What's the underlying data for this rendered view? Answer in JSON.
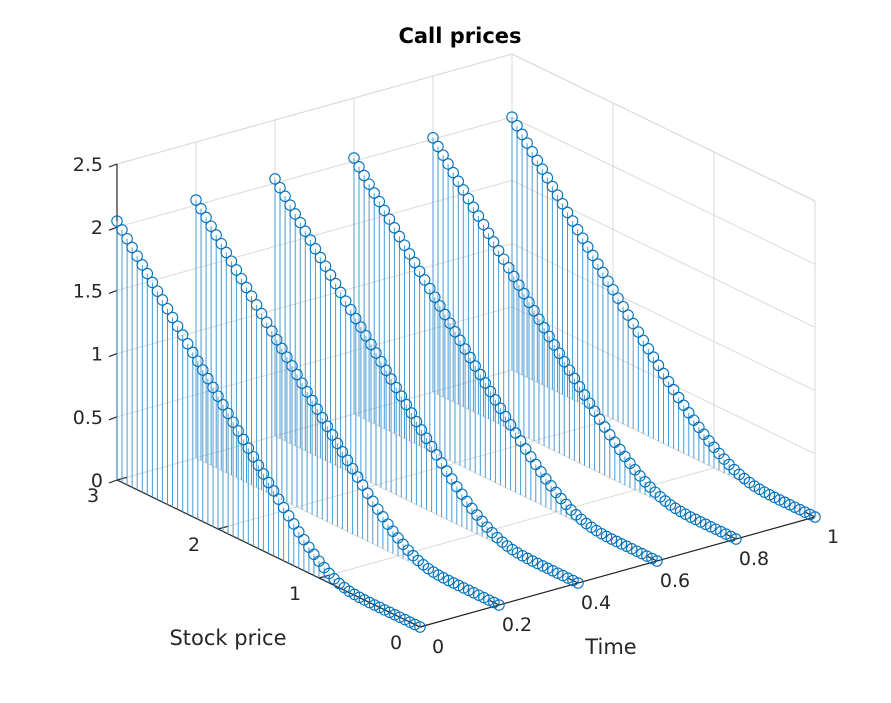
{
  "chart_data": {
    "type": "stem3",
    "title": "Call prices",
    "xlabel": "Time",
    "ylabel": "Stock price",
    "zlabel": "",
    "xlim": [
      0,
      1
    ],
    "ylim": [
      0,
      3
    ],
    "zlim": [
      0,
      2.5
    ],
    "grid": true,
    "colors": {
      "series": "#0072BD",
      "stem": "#4A9BD4",
      "grid": "#DADADA",
      "axis": "#262626"
    },
    "x_ticks": [
      {
        "value": 0,
        "label": "0"
      },
      {
        "value": 0.2,
        "label": "0.2"
      },
      {
        "value": 0.4,
        "label": "0.4"
      },
      {
        "value": 0.6,
        "label": "0.6"
      },
      {
        "value": 0.8,
        "label": "0.8"
      },
      {
        "value": 1,
        "label": "1"
      }
    ],
    "y_ticks": [
      {
        "value": 0,
        "label": "0"
      },
      {
        "value": 1,
        "label": "1"
      },
      {
        "value": 2,
        "label": "2"
      },
      {
        "value": 3,
        "label": "3"
      }
    ],
    "z_ticks": [
      {
        "value": 0,
        "label": "0"
      },
      {
        "value": 0.5,
        "label": "0.5"
      },
      {
        "value": 1,
        "label": "1"
      },
      {
        "value": 1.5,
        "label": "1.5"
      },
      {
        "value": 2,
        "label": "2"
      },
      {
        "value": 2.5,
        "label": "2.5"
      }
    ],
    "series": [
      {
        "time": 0,
        "stock_price": [
          0,
          0.05,
          0.1,
          0.15,
          0.2,
          0.25,
          0.3,
          0.35,
          0.4,
          0.45,
          0.5,
          0.55,
          0.6,
          0.65,
          0.7,
          0.75,
          0.8,
          0.85,
          0.9,
          0.95,
          1,
          1.05,
          1.1,
          1.15,
          1.2,
          1.25,
          1.3,
          1.35,
          1.4,
          1.45,
          1.5,
          1.55,
          1.6,
          1.65,
          1.7,
          1.75,
          1.8,
          1.85,
          1.9,
          1.95,
          2,
          2.05,
          2.1,
          2.15,
          2.2,
          2.25,
          2.3,
          2.35,
          2.4,
          2.45,
          2.5,
          2.55,
          2.6,
          2.65,
          2.7,
          2.75,
          2.8,
          2.85,
          2.9,
          2.95,
          3
        ],
        "price": [
          0,
          0,
          0,
          0,
          0,
          0,
          0,
          0,
          0,
          0,
          0,
          0.001,
          0.002,
          0.006,
          0.011,
          0.021,
          0.034,
          0.052,
          0.075,
          0.102,
          0.133,
          0.168,
          0.205,
          0.245,
          0.287,
          0.331,
          0.376,
          0.421,
          0.468,
          0.515,
          0.562,
          0.61,
          0.659,
          0.707,
          0.756,
          0.805,
          0.854,
          0.903,
          0.953,
          1.002,
          1.051,
          1.101,
          1.151,
          1.2,
          1.25,
          1.3,
          1.349,
          1.399,
          1.449,
          1.499,
          1.549,
          1.599,
          1.649,
          1.699,
          1.749,
          1.799,
          1.849,
          1.898,
          1.948,
          1.998,
          2.048
        ]
      },
      {
        "time": 0.2,
        "stock_price": [
          0,
          0.05,
          0.1,
          0.15,
          0.2,
          0.25,
          0.3,
          0.35,
          0.4,
          0.45,
          0.5,
          0.55,
          0.6,
          0.65,
          0.7,
          0.75,
          0.8,
          0.85,
          0.9,
          0.95,
          1,
          1.05,
          1.1,
          1.15,
          1.2,
          1.25,
          1.3,
          1.35,
          1.4,
          1.45,
          1.5,
          1.55,
          1.6,
          1.65,
          1.7,
          1.75,
          1.8,
          1.85,
          1.9,
          1.95,
          2,
          2.05,
          2.1,
          2.15,
          2.2,
          2.25,
          2.3,
          2.35,
          2.4,
          2.45,
          2.5,
          2.55,
          2.6,
          2.65,
          2.7,
          2.75,
          2.8,
          2.85,
          2.9,
          2.95,
          3
        ],
        "price": [
          0,
          0,
          0,
          0,
          0,
          0,
          0,
          0,
          0,
          0,
          0,
          0.002,
          0.004,
          0.009,
          0.016,
          0.027,
          0.042,
          0.061,
          0.085,
          0.112,
          0.143,
          0.177,
          0.213,
          0.252,
          0.293,
          0.336,
          0.38,
          0.425,
          0.47,
          0.516,
          0.563,
          0.611,
          0.658,
          0.706,
          0.755,
          0.803,
          0.852,
          0.901,
          0.95,
          0.999,
          1.048,
          1.097,
          1.147,
          1.196,
          1.246,
          1.295,
          1.345,
          1.394,
          1.444,
          1.494,
          1.543,
          1.593,
          1.643,
          1.693,
          1.742,
          1.792,
          1.842,
          1.892,
          1.942,
          1.991,
          2.041
        ]
      },
      {
        "time": 0.4,
        "stock_price": [
          0,
          0.05,
          0.1,
          0.15,
          0.2,
          0.25,
          0.3,
          0.35,
          0.4,
          0.45,
          0.5,
          0.55,
          0.6,
          0.65,
          0.7,
          0.75,
          0.8,
          0.85,
          0.9,
          0.95,
          1,
          1.05,
          1.1,
          1.15,
          1.2,
          1.25,
          1.3,
          1.35,
          1.4,
          1.45,
          1.5,
          1.55,
          1.6,
          1.65,
          1.7,
          1.75,
          1.8,
          1.85,
          1.9,
          1.95,
          2,
          2.05,
          2.1,
          2.15,
          2.2,
          2.25,
          2.3,
          2.35,
          2.4,
          2.45,
          2.5,
          2.55,
          2.6,
          2.65,
          2.7,
          2.75,
          2.8,
          2.85,
          2.9,
          2.95,
          3
        ],
        "price": [
          0,
          0,
          0,
          0,
          0,
          0,
          0,
          0,
          0,
          0,
          0.001,
          0.002,
          0.006,
          0.012,
          0.021,
          0.033,
          0.049,
          0.069,
          0.093,
          0.12,
          0.15,
          0.183,
          0.219,
          0.257,
          0.297,
          0.339,
          0.382,
          0.426,
          0.471,
          0.517,
          0.563,
          0.61,
          0.657,
          0.705,
          0.752,
          0.8,
          0.849,
          0.897,
          0.946,
          0.995,
          1.044,
          1.093,
          1.142,
          1.191,
          1.24,
          1.29,
          1.339,
          1.388,
          1.438,
          1.487,
          1.537,
          1.587,
          1.636,
          1.686,
          1.736,
          1.785,
          1.835,
          1.885,
          1.935,
          1.984,
          2.034
        ]
      },
      {
        "time": 0.6,
        "stock_price": [
          0,
          0.05,
          0.1,
          0.15,
          0.2,
          0.25,
          0.3,
          0.35,
          0.4,
          0.45,
          0.5,
          0.55,
          0.6,
          0.65,
          0.7,
          0.75,
          0.8,
          0.85,
          0.9,
          0.95,
          1,
          1.05,
          1.1,
          1.15,
          1.2,
          1.25,
          1.3,
          1.35,
          1.4,
          1.45,
          1.5,
          1.55,
          1.6,
          1.65,
          1.7,
          1.75,
          1.8,
          1.85,
          1.9,
          1.95,
          2,
          2.05,
          2.1,
          2.15,
          2.2,
          2.25,
          2.3,
          2.35,
          2.4,
          2.45,
          2.5,
          2.55,
          2.6,
          2.65,
          2.7,
          2.75,
          2.8,
          2.85,
          2.9,
          2.95,
          3
        ],
        "price": [
          0,
          0,
          0,
          0,
          0,
          0,
          0,
          0,
          0,
          0,
          0.001,
          0.003,
          0.008,
          0.015,
          0.025,
          0.038,
          0.055,
          0.075,
          0.099,
          0.126,
          0.155,
          0.188,
          0.223,
          0.26,
          0.299,
          0.34,
          0.382,
          0.426,
          0.47,
          0.515,
          0.561,
          0.607,
          0.654,
          0.701,
          0.749,
          0.797,
          0.845,
          0.893,
          0.941,
          0.99,
          1.038,
          1.087,
          1.136,
          1.185,
          1.234,
          1.283,
          1.332,
          1.381,
          1.431,
          1.48,
          1.529,
          1.579,
          1.628,
          1.678,
          1.727,
          1.777,
          1.826,
          1.876,
          1.926,
          1.975,
          2.025
        ]
      },
      {
        "time": 0.8,
        "stock_price": [
          0,
          0.05,
          0.1,
          0.15,
          0.2,
          0.25,
          0.3,
          0.35,
          0.4,
          0.45,
          0.5,
          0.55,
          0.6,
          0.65,
          0.7,
          0.75,
          0.8,
          0.85,
          0.9,
          0.95,
          1,
          1.05,
          1.1,
          1.15,
          1.2,
          1.25,
          1.3,
          1.35,
          1.4,
          1.45,
          1.5,
          1.55,
          1.6,
          1.65,
          1.7,
          1.75,
          1.8,
          1.85,
          1.9,
          1.95,
          2,
          2.05,
          2.1,
          2.15,
          2.2,
          2.25,
          2.3,
          2.35,
          2.4,
          2.45,
          2.5,
          2.55,
          2.6,
          2.65,
          2.7,
          2.75,
          2.8,
          2.85,
          2.9,
          2.95,
          3
        ],
        "price": [
          0,
          0,
          0,
          0,
          0,
          0,
          0,
          0,
          0,
          0,
          0.002,
          0.005,
          0.01,
          0.018,
          0.029,
          0.043,
          0.06,
          0.081,
          0.104,
          0.131,
          0.16,
          0.192,
          0.226,
          0.262,
          0.3,
          0.34,
          0.382,
          0.424,
          0.468,
          0.512,
          0.558,
          0.603,
          0.65,
          0.696,
          0.743,
          0.791,
          0.838,
          0.886,
          0.934,
          0.982,
          1.03,
          1.078,
          1.127,
          1.175,
          1.224,
          1.273,
          1.322,
          1.371,
          1.42,
          1.469,
          1.518,
          1.567,
          1.616,
          1.665,
          1.715,
          1.764,
          1.813,
          1.863,
          1.912,
          1.962,
          2.011
        ]
      },
      {
        "time": 1,
        "stock_price": [
          0,
          0.05,
          0.1,
          0.15,
          0.2,
          0.25,
          0.3,
          0.35,
          0.4,
          0.45,
          0.5,
          0.55,
          0.6,
          0.65,
          0.7,
          0.75,
          0.8,
          0.85,
          0.9,
          0.95,
          1,
          1.05,
          1.1,
          1.15,
          1.2,
          1.25,
          1.3,
          1.35,
          1.4,
          1.45,
          1.5,
          1.55,
          1.6,
          1.65,
          1.7,
          1.75,
          1.8,
          1.85,
          1.9,
          1.95,
          2,
          2.05,
          2.1,
          2.15,
          2.2,
          2.25,
          2.3,
          2.35,
          2.4,
          2.45,
          2.5,
          2.55,
          2.6,
          2.65,
          2.7,
          2.75,
          2.8,
          2.85,
          2.9,
          2.95,
          3
        ],
        "price": [
          0,
          0,
          0,
          0,
          0,
          0,
          0,
          0,
          0,
          0.001,
          0.002,
          0.006,
          0.012,
          0.021,
          0.033,
          0.047,
          0.065,
          0.086,
          0.109,
          0.135,
          0.164,
          0.195,
          0.228,
          0.264,
          0.301,
          0.34,
          0.38,
          0.422,
          0.465,
          0.509,
          0.554,
          0.599,
          0.645,
          0.691,
          0.738,
          0.785,
          0.832,
          0.88,
          0.927,
          0.975,
          1.023,
          1.071,
          1.12,
          1.168,
          1.217,
          1.265,
          1.314,
          1.363,
          1.411,
          1.46,
          1.509,
          1.558,
          1.607,
          1.656,
          1.706,
          1.755,
          1.804,
          1.853,
          1.903,
          1.952,
          2.001
        ]
      }
    ]
  }
}
